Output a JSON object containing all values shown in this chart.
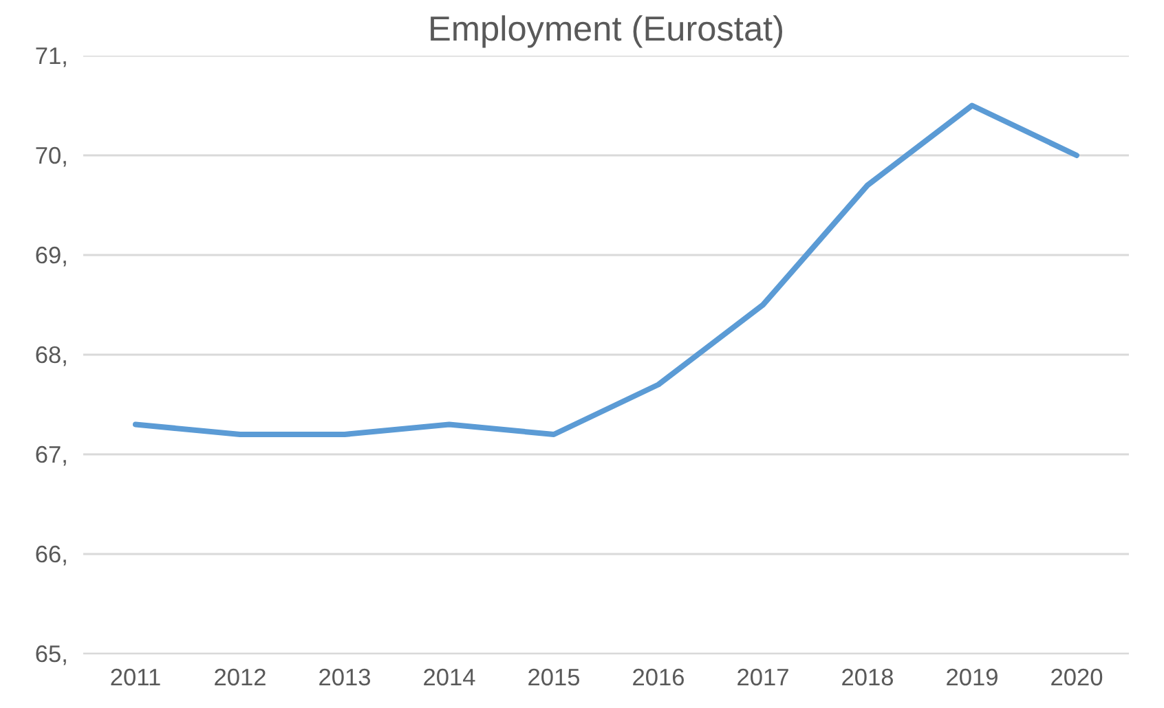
{
  "chart_data": {
    "type": "line",
    "title": "Employment (Eurostat)",
    "categories": [
      "2011",
      "2012",
      "2013",
      "2014",
      "2015",
      "2016",
      "2017",
      "2018",
      "2019",
      "2020"
    ],
    "series": [
      {
        "color": "#5b9bd5",
        "values": [
          67.3,
          67.2,
          67.2,
          67.3,
          67.2,
          67.7,
          68.5,
          69.7,
          70.5,
          70.0
        ]
      }
    ],
    "ylim": [
      65,
      71
    ],
    "yticks": [
      {
        "value": 65,
        "label": "65,"
      },
      {
        "value": 66,
        "label": "66,"
      },
      {
        "value": 67,
        "label": "67,"
      },
      {
        "value": 68,
        "label": "68,"
      },
      {
        "value": 69,
        "label": "69,"
      },
      {
        "value": 70,
        "label": "70,"
      },
      {
        "value": 71,
        "label": "71,"
      }
    ],
    "grid": "y",
    "marker": "none",
    "line_style": "solid"
  }
}
